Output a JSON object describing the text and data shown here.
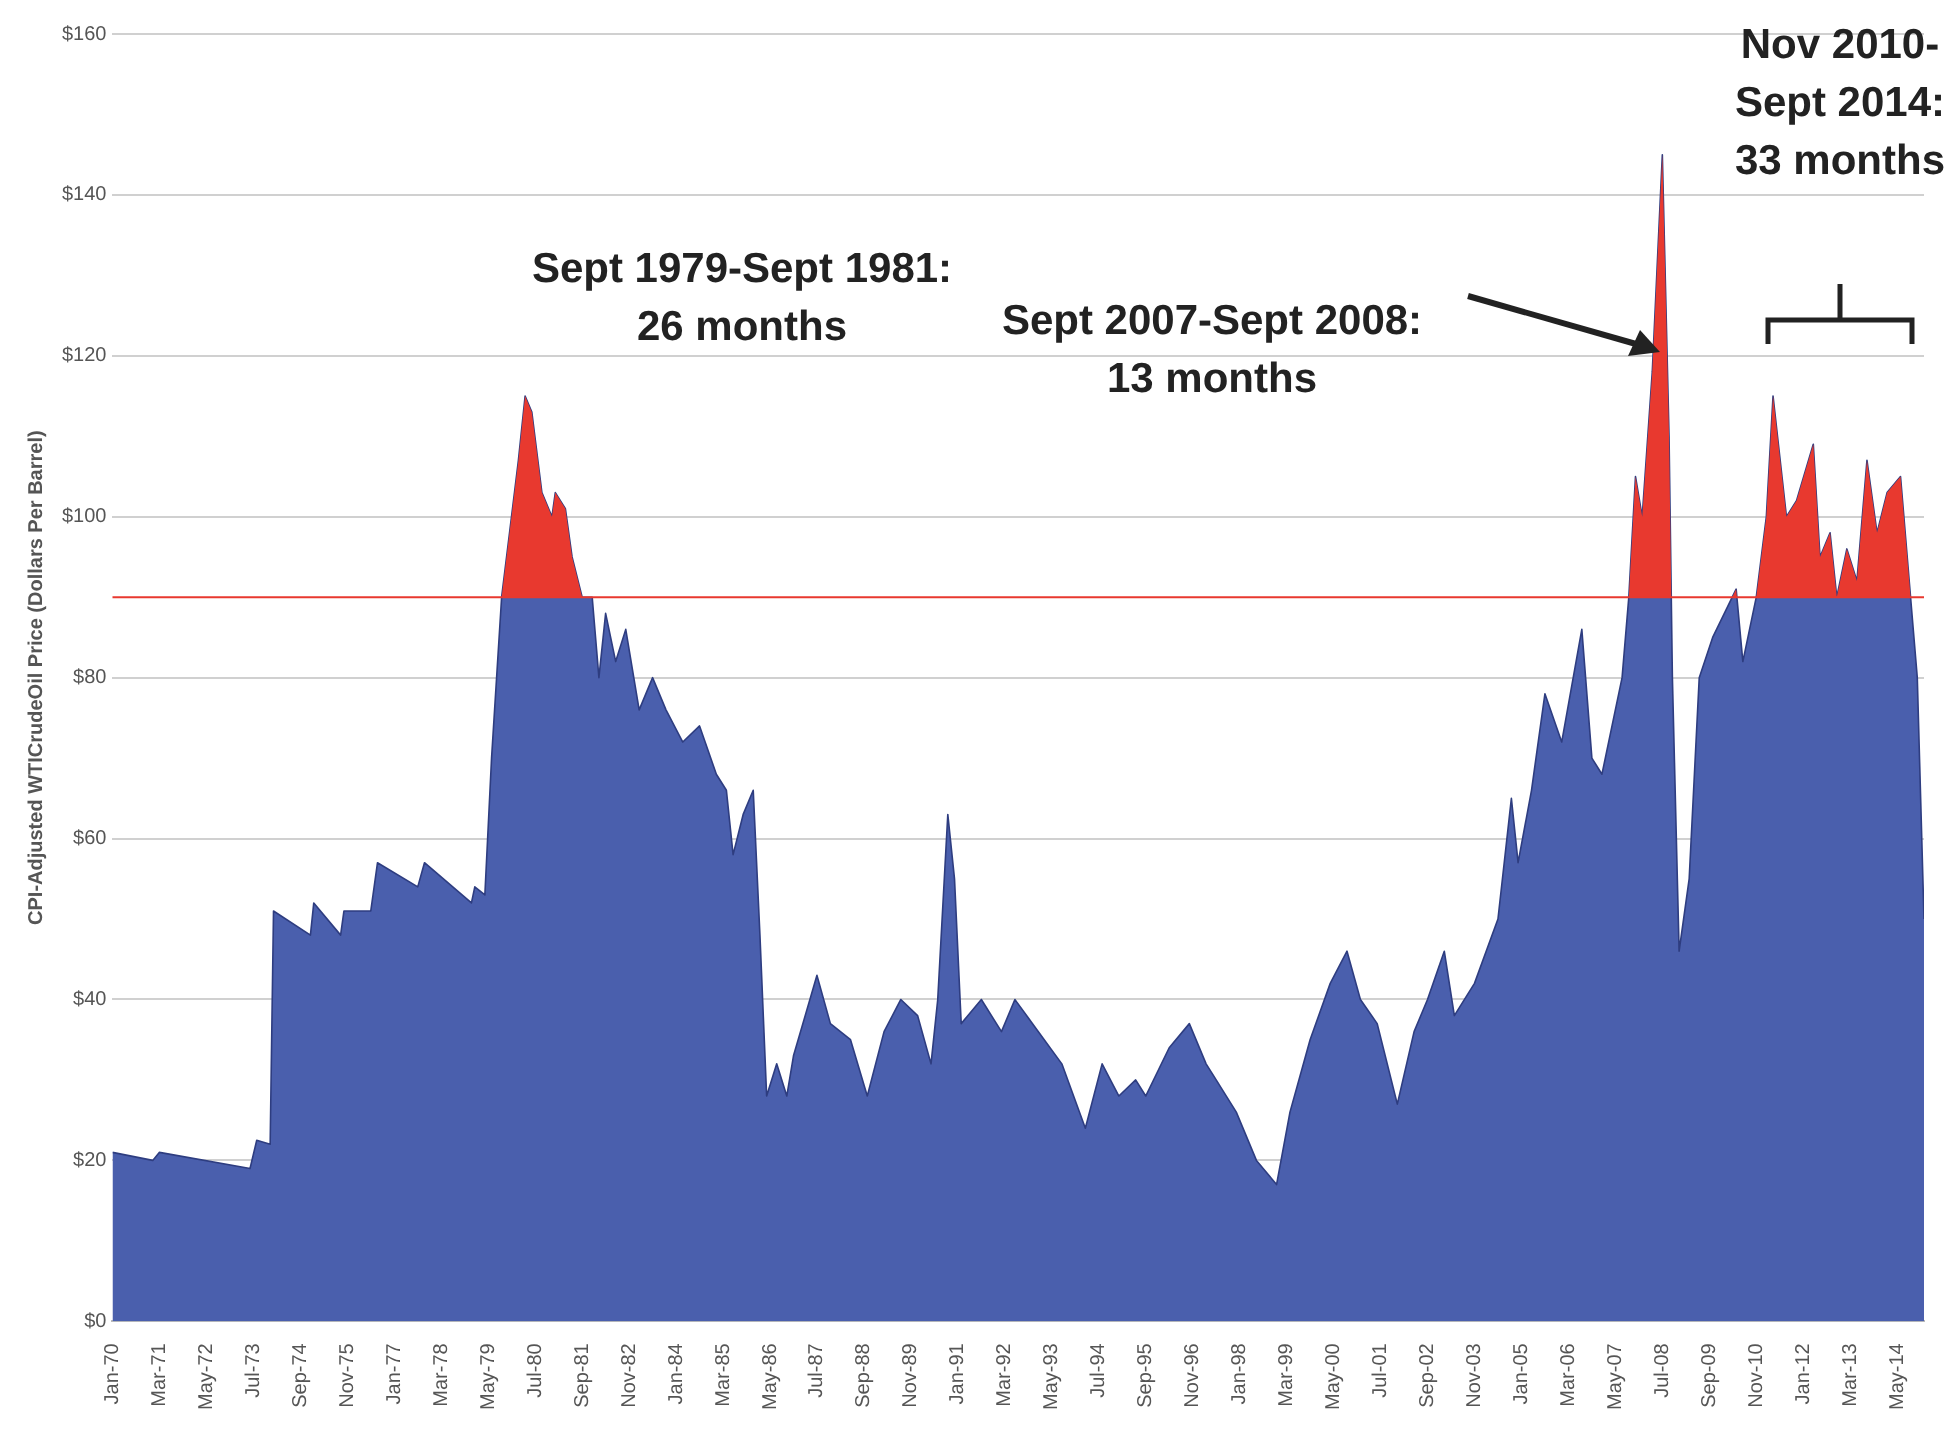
{
  "chart_data": {
    "type": "area",
    "ylabel": "CPI-Adjusted WTICrudeOil Price (Dollars Per Barrel)",
    "x": [
      "1970-01",
      "1971-01",
      "1971-03",
      "1973-06",
      "1973-08",
      "1973-12",
      "1974-01",
      "1974-12",
      "1975-01",
      "1975-09",
      "1975-10",
      "1976-06",
      "1976-08",
      "1977-08",
      "1977-10",
      "1978-12",
      "1979-01",
      "1979-04",
      "1979-06",
      "1979-09",
      "1980-02",
      "1980-04",
      "1980-06",
      "1980-09",
      "1980-12",
      "1981-01",
      "1981-04",
      "1981-06",
      "1981-09",
      "1981-12",
      "1982-02",
      "1982-04",
      "1982-07",
      "1982-10",
      "1983-02",
      "1983-06",
      "1983-10",
      "1984-03",
      "1984-08",
      "1985-01",
      "1985-04",
      "1985-06",
      "1985-09",
      "1985-12",
      "1986-02",
      "1986-04",
      "1986-07",
      "1986-10",
      "1986-12",
      "1987-07",
      "1987-11",
      "1988-05",
      "1988-10",
      "1989-03",
      "1989-08",
      "1990-01",
      "1990-05",
      "1990-07",
      "1990-10",
      "1990-12",
      "1991-02",
      "1991-08",
      "1992-02",
      "1992-06",
      "1993-01",
      "1993-08",
      "1994-03",
      "1994-08",
      "1995-01",
      "1995-06",
      "1995-09",
      "1996-04",
      "1996-10",
      "1997-03",
      "1997-06",
      "1997-12",
      "1998-06",
      "1998-12",
      "1999-04",
      "1999-10",
      "2000-04",
      "2000-09",
      "2001-01",
      "2001-06",
      "2001-12",
      "2002-05",
      "2002-09",
      "2003-02",
      "2003-05",
      "2003-11",
      "2004-06",
      "2004-10",
      "2004-12",
      "2005-04",
      "2005-08",
      "2006-01",
      "2006-07",
      "2006-10",
      "2007-01",
      "2007-07",
      "2007-09",
      "2007-11",
      "2008-01",
      "2008-04",
      "2008-07",
      "2008-09",
      "2008-10",
      "2008-12",
      "2009-03",
      "2009-06",
      "2009-10",
      "2010-05",
      "2010-07",
      "2010-11",
      "2011-02",
      "2011-04",
      "2011-08",
      "2011-11",
      "2012-04",
      "2012-06",
      "2012-09",
      "2012-11",
      "2013-02",
      "2013-05",
      "2013-08",
      "2013-11",
      "2014-02",
      "2014-06",
      "2014-09",
      "2014-11",
      "2015-01"
    ],
    "series": [
      {
        "color": "#4a5fad",
        "values": [
          21,
          20,
          21,
          19,
          22.5,
          22,
          51,
          48,
          52,
          48,
          51,
          51,
          57,
          54,
          57,
          52,
          54,
          53,
          70,
          90,
          107,
          115,
          113,
          103,
          100,
          103,
          101,
          95,
          90,
          90,
          80,
          88,
          82,
          86,
          76,
          80,
          76,
          72,
          74,
          68,
          66,
          58,
          63,
          66,
          48,
          28,
          32,
          28,
          33,
          43,
          37,
          35,
          28,
          36,
          40,
          38,
          32,
          40,
          63,
          55,
          37,
          40,
          36,
          40,
          36,
          32,
          24,
          32,
          28,
          30,
          28,
          34,
          37,
          32,
          30,
          26,
          20,
          17,
          26,
          35,
          42,
          46,
          40,
          37,
          27,
          36,
          40,
          46,
          38,
          42,
          50,
          65,
          57,
          66,
          78,
          72,
          86,
          70,
          68,
          80,
          90,
          105,
          100,
          118,
          145,
          110,
          80,
          46,
          55,
          80,
          85,
          91,
          82,
          90,
          100,
          115,
          100,
          102,
          109,
          95,
          98,
          90,
          96,
          92,
          107,
          98,
          103,
          105,
          90,
          80,
          50
        ]
      }
    ],
    "xlim": [
      "1970-01",
      "2015-01"
    ],
    "xticks": [
      {
        "value": "1970-01",
        "label": "Jan-70"
      },
      {
        "value": "1971-03",
        "label": "Mar-71"
      },
      {
        "value": "1972-05",
        "label": "May-72"
      },
      {
        "value": "1973-07",
        "label": "Jul-73"
      },
      {
        "value": "1974-09",
        "label": "Sep-74"
      },
      {
        "value": "1975-11",
        "label": "Nov-75"
      },
      {
        "value": "1977-01",
        "label": "Jan-77"
      },
      {
        "value": "1978-03",
        "label": "Mar-78"
      },
      {
        "value": "1979-05",
        "label": "May-79"
      },
      {
        "value": "1980-07",
        "label": "Jul-80"
      },
      {
        "value": "1981-09",
        "label": "Sep-81"
      },
      {
        "value": "1982-11",
        "label": "Nov-82"
      },
      {
        "value": "1984-01",
        "label": "Jan-84"
      },
      {
        "value": "1985-03",
        "label": "Mar-85"
      },
      {
        "value": "1986-05",
        "label": "May-86"
      },
      {
        "value": "1987-07",
        "label": "Jul-87"
      },
      {
        "value": "1988-09",
        "label": "Sep-88"
      },
      {
        "value": "1989-11",
        "label": "Nov-89"
      },
      {
        "value": "1991-01",
        "label": "Jan-91"
      },
      {
        "value": "1992-03",
        "label": "Mar-92"
      },
      {
        "value": "1993-05",
        "label": "May-93"
      },
      {
        "value": "1994-07",
        "label": "Jul-94"
      },
      {
        "value": "1995-09",
        "label": "Sep-95"
      },
      {
        "value": "1996-11",
        "label": "Nov-96"
      },
      {
        "value": "1998-01",
        "label": "Jan-98"
      },
      {
        "value": "1999-03",
        "label": "Mar-99"
      },
      {
        "value": "2000-05",
        "label": "May-00"
      },
      {
        "value": "2001-07",
        "label": "Jul-01"
      },
      {
        "value": "2002-09",
        "label": "Sep-02"
      },
      {
        "value": "2003-11",
        "label": "Nov-03"
      },
      {
        "value": "2005-01",
        "label": "Jan-05"
      },
      {
        "value": "2006-03",
        "label": "Mar-06"
      },
      {
        "value": "2007-05",
        "label": "May-07"
      },
      {
        "value": "2008-07",
        "label": "Jul-08"
      },
      {
        "value": "2009-09",
        "label": "Sep-09"
      },
      {
        "value": "2010-11",
        "label": "Nov-10"
      },
      {
        "value": "2012-01",
        "label": "Jan-12"
      },
      {
        "value": "2013-03",
        "label": "Mar-13"
      },
      {
        "value": "2014-05",
        "label": "May-14"
      }
    ],
    "ylim": [
      0,
      160
    ],
    "yticks": [
      {
        "value": 0,
        "label": "$0"
      },
      {
        "value": 20,
        "label": "$20"
      },
      {
        "value": 40,
        "label": "$40"
      },
      {
        "value": 60,
        "label": "$60"
      },
      {
        "value": 80,
        "label": "$80"
      },
      {
        "value": 100,
        "label": "$100"
      },
      {
        "value": 120,
        "label": "$120"
      },
      {
        "value": 140,
        "label": "$140"
      },
      {
        "value": 160,
        "label": "$160"
      }
    ],
    "ref_lines": [
      {
        "axis": "y",
        "value": 90,
        "color": "#e8392f"
      }
    ],
    "grid": "y",
    "annotations": [
      "Sept 1979-Sept 1981:\n26 months",
      "Sept 2007-Sept 2008:\n13 months",
      "Nov 2010-\nSept 2014:\n33 months"
    ]
  }
}
